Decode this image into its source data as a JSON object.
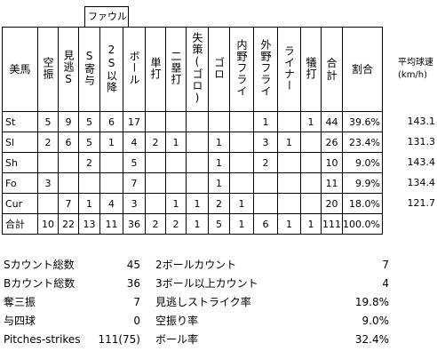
{
  "foul_group": "ファウル",
  "headers": [
    "美馬",
    "空振",
    "見逃S",
    "S寄与",
    "2S以降",
    "ボール",
    "単打",
    "二塁打",
    "失策(ゴロ)",
    "ゴロ",
    "内野フライ",
    "外野フライ",
    "ライナー",
    "犠打",
    "合計",
    "割合"
  ],
  "side_header": "平均球速(km/h)",
  "rows": [
    {
      "cells": [
        "St",
        "5",
        "9",
        "5",
        "6",
        "17",
        "",
        "",
        "",
        "",
        "",
        "1",
        "",
        "1",
        "44",
        "39.6%"
      ],
      "speed": "143.1"
    },
    {
      "cells": [
        "Sl",
        "2",
        "6",
        "5",
        "1",
        "4",
        "2",
        "1",
        "",
        "1",
        "",
        "3",
        "1",
        "",
        "26",
        "23.4%"
      ],
      "speed": "131.3"
    },
    {
      "cells": [
        "Sh",
        "",
        "",
        "2",
        "",
        "5",
        "",
        "",
        "",
        "1",
        "",
        "2",
        "",
        "",
        "10",
        "9.0%"
      ],
      "speed": "143.4"
    },
    {
      "cells": [
        "Fo",
        "3",
        "",
        "",
        "",
        "7",
        "",
        "",
        "",
        "1",
        "",
        "",
        "",
        "",
        "11",
        "9.9%"
      ],
      "speed": "134.4"
    },
    {
      "cells": [
        "Cur",
        "",
        "7",
        "1",
        "4",
        "3",
        "",
        "1",
        "1",
        "2",
        "1",
        "",
        "",
        "",
        "20",
        "18.0%"
      ],
      "speed": "121.7"
    },
    {
      "cells": [
        "合計",
        "10",
        "22",
        "13",
        "11",
        "36",
        "2",
        "2",
        "1",
        "5",
        "1",
        "6",
        "1",
        "1",
        "111",
        "100.0%"
      ],
      "speed": ""
    }
  ],
  "summary": [
    {
      "label": "Sカウント総数",
      "value": "45",
      "label2": "2ボールカウント",
      "value2": "7"
    },
    {
      "label": "Bカウント総数",
      "value": "36",
      "label2": "3ボール以上カウント",
      "value2": "4"
    },
    {
      "label": "奪三振",
      "value": "7",
      "label2": "見逃しストライク率",
      "value2": "19.8%"
    },
    {
      "label": "与四球",
      "value": "0",
      "label2": "空振り率",
      "value2": "9.0%"
    },
    {
      "label": "Pitches-strikes",
      "value": "111(75)",
      "label2": "ボール率",
      "value2": "32.4%"
    }
  ]
}
